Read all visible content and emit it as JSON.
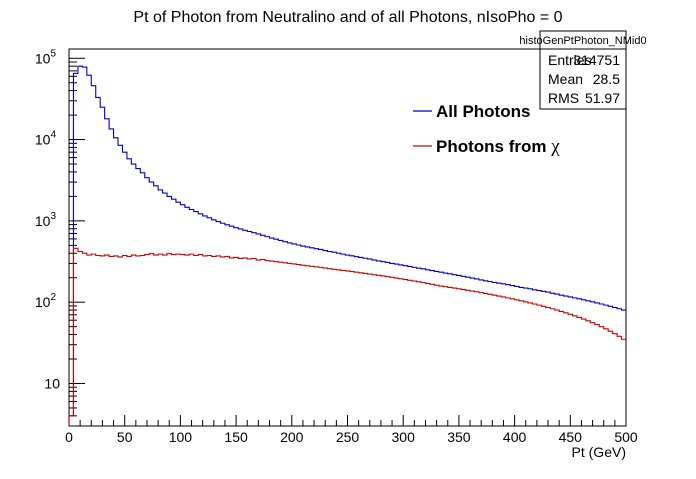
{
  "chart_data": {
    "type": "line",
    "style": "step-histogram",
    "title": "Pt of Photon from Neutralino and of all Photons, nIsoPho = 0",
    "xlabel": "Pt (GeV)",
    "ylabel": "",
    "xlim": [
      0,
      500
    ],
    "ylim": [
      3,
      130000
    ],
    "y_scale": "log",
    "bin_width": 4,
    "x_ticks": [
      0,
      50,
      100,
      150,
      200,
      250,
      300,
      350,
      400,
      450,
      500
    ],
    "x_tick_labels": [
      "0",
      "50",
      "100",
      "150",
      "200",
      "250",
      "300",
      "350",
      "400",
      "450",
      "500"
    ],
    "y_ticks": [
      10,
      100,
      1000,
      10000,
      100000
    ],
    "y_tick_labels": [
      "10",
      "10",
      "10",
      "10",
      "10"
    ],
    "y_tick_exponents": [
      "",
      "2",
      "3",
      "4",
      "5"
    ],
    "legend": {
      "placement": "top-right",
      "entries": [
        {
          "label": "All Photons",
          "symbol": "",
          "color": "#0000cc"
        },
        {
          "label": "Photons from ",
          "symbol": "χ",
          "color": "#cc0000"
        }
      ]
    },
    "stats_box": {
      "name": "histoGenPtPhoton_NMid0",
      "rows": [
        {
          "label": "Entries",
          "value": "314751"
        },
        {
          "label": "Mean",
          "value": "28.5"
        },
        {
          "label": "RMS",
          "value": "51.97"
        }
      ]
    },
    "series": [
      {
        "name": "All Photons",
        "color": "#0000cc",
        "values": [
          4,
          65000,
          80000,
          78000,
          62000,
          46000,
          33000,
          25000,
          18000,
          13500,
          10500,
          8500,
          7000,
          5800,
          5000,
          4400,
          3900,
          3400,
          3000,
          2700,
          2400,
          2200,
          2000,
          1850,
          1700,
          1580,
          1470,
          1380,
          1300,
          1220,
          1150,
          1090,
          1030,
          980,
          935,
          895,
          860,
          825,
          795,
          765,
          740,
          715,
          690,
          665,
          640,
          615,
          595,
          575,
          555,
          535,
          520,
          505,
          490,
          478,
          466,
          455,
          445,
          432,
          420,
          412,
          400,
          390,
          380,
          372,
          363,
          355,
          347,
          340,
          330,
          322,
          315,
          308,
          300,
          294,
          287,
          281,
          275,
          268,
          262,
          257,
          250,
          245,
          239,
          234,
          228,
          223,
          218,
          213,
          208,
          203,
          198,
          193,
          188,
          183,
          179,
          175,
          171,
          168,
          164,
          160,
          156,
          152,
          149,
          146,
          142,
          139,
          136,
          133,
          129,
          126,
          122,
          119,
          116,
          113,
          110,
          107,
          104,
          101,
          98,
          95,
          92,
          89,
          86,
          83,
          80,
          77,
          74,
          71,
          68
        ]
      },
      {
        "name": "Photons from χ",
        "color": "#cc0000",
        "values": [
          4,
          460,
          420,
          400,
          380,
          390,
          375,
          370,
          380,
          365,
          370,
          360,
          375,
          365,
          380,
          370,
          375,
          385,
          395,
          380,
          390,
          380,
          395,
          385,
          390,
          385,
          380,
          390,
          375,
          385,
          370,
          375,
          365,
          370,
          360,
          365,
          350,
          355,
          345,
          350,
          340,
          345,
          330,
          335,
          325,
          320,
          315,
          310,
          305,
          300,
          295,
          290,
          285,
          280,
          276,
          272,
          268,
          263,
          258,
          254,
          250,
          246,
          242,
          238,
          234,
          230,
          226,
          222,
          218,
          214,
          210,
          206,
          202,
          198,
          194,
          190,
          186,
          182,
          178,
          174,
          170,
          166,
          162,
          158,
          155,
          152,
          149,
          146,
          143,
          140,
          137,
          134,
          131,
          128,
          125,
          122,
          119,
          116,
          113,
          110,
          107,
          104,
          101,
          98,
          95,
          92,
          89,
          86,
          83,
          80,
          77,
          74,
          71,
          68,
          65,
          62,
          59,
          56,
          53,
          50,
          47,
          44,
          41,
          38,
          35,
          32,
          29
        ]
      }
    ]
  }
}
